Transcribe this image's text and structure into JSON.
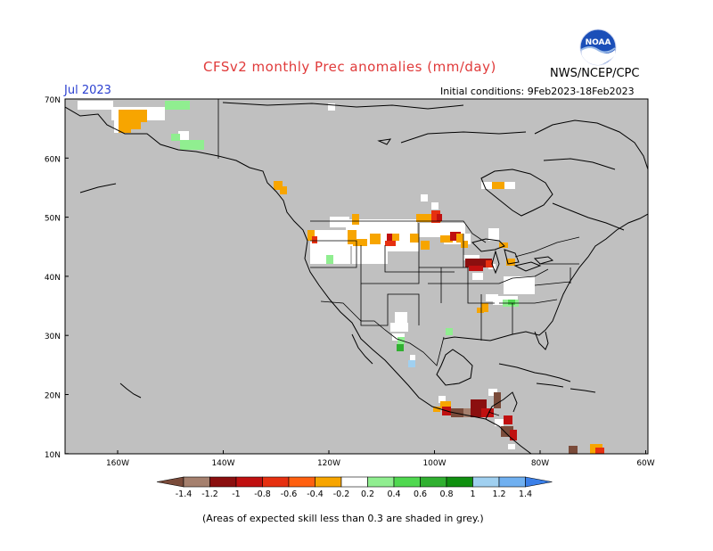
{
  "title": "CFSv2 monthly Prec anomalies (mm/day)",
  "org": "NWS/NCEP/CPC",
  "logo_text": "NOAA",
  "month": "Jul 2023",
  "initial_conditions": "Initial conditions:  9Feb2023-18Feb2023",
  "footnote": "(Areas of expected skill less than 0.3 are shaded in grey.)",
  "lat_labels": [
    "70N",
    "60N",
    "50N",
    "40N",
    "30N",
    "20N",
    "10N"
  ],
  "lon_labels": [
    "160W",
    "140W",
    "120W",
    "100W",
    "80W",
    "60W"
  ],
  "colorbar": {
    "labels": [
      "-1.4",
      "-1.2",
      "-1",
      "-0.8",
      "-0.6",
      "-0.4",
      "-0.2",
      "0.2",
      "0.4",
      "0.6",
      "0.8",
      "1",
      "1.2",
      "1.4"
    ],
    "colors": [
      "#7a4b3a",
      "#a5806e",
      "#8b0f0f",
      "#c01010",
      "#e63010",
      "#ff6010",
      "#f7a500",
      "#ffffff",
      "#90ee90",
      "#50d850",
      "#30b030",
      "#109010",
      "#a0d0f0",
      "#70b0f0",
      "#3a7fe8"
    ],
    "skill_grey": "#c0c0c0"
  }
}
